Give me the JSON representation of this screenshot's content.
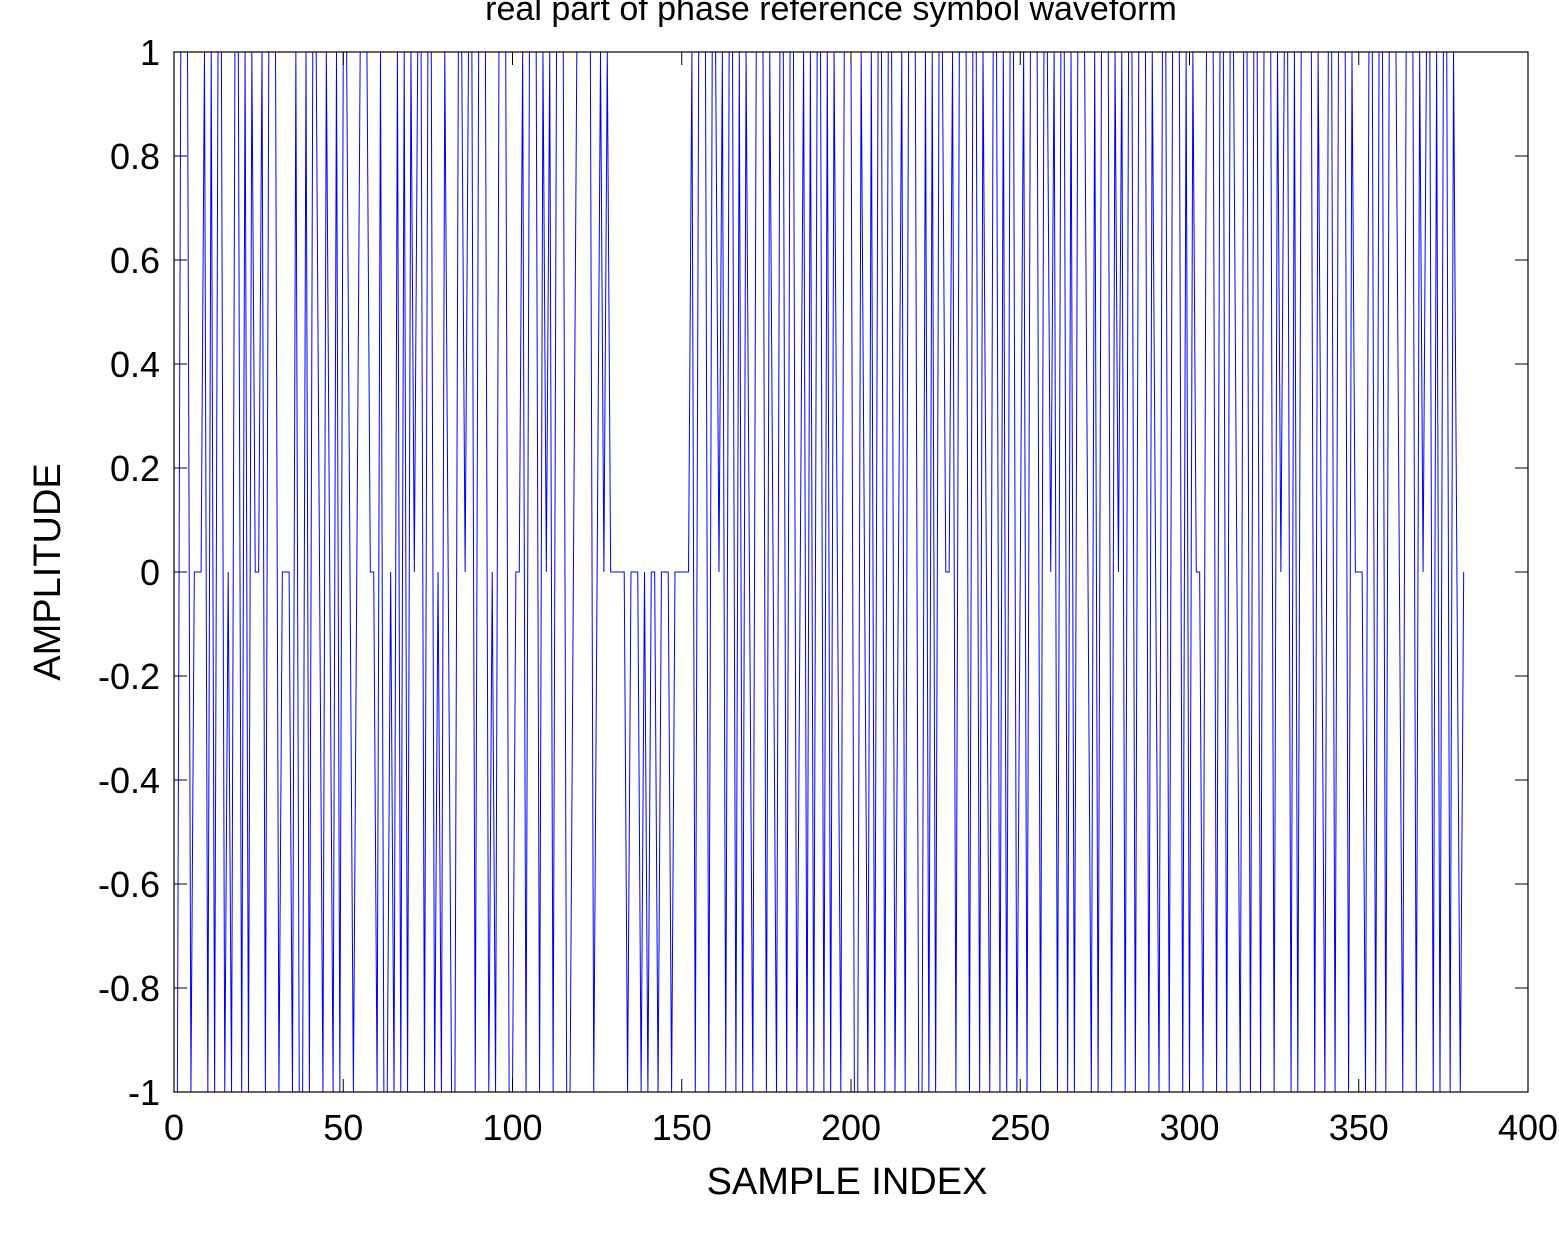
{
  "chart_data": {
    "type": "line",
    "title": "real part of phase reference symbol waveform",
    "xlabel": "SAMPLE INDEX",
    "ylabel": "AMPLITUDE",
    "xlim": [
      0,
      400
    ],
    "ylim": [
      -1,
      1
    ],
    "xticks": [
      "0",
      "50",
      "100",
      "150",
      "200",
      "250",
      "300",
      "350",
      "400"
    ],
    "yticks": [
      "-1",
      "-0.8",
      "-0.6",
      "-0.4",
      "-0.2",
      "0",
      "0.2",
      "0.4",
      "0.6",
      "0.8",
      "1"
    ],
    "grid": false,
    "line_color": "#0000ff",
    "series": [
      {
        "x_start": 1,
        "values": [
          -1,
          1,
          1,
          1,
          -1,
          0,
          0,
          0,
          1,
          -1,
          1,
          -1,
          1,
          1,
          -1,
          0,
          -1,
          1,
          1,
          -1,
          1,
          -1,
          1,
          0,
          0,
          1,
          -1,
          1,
          1,
          1,
          -1,
          0,
          0,
          0,
          -1,
          1,
          -1,
          -1,
          1,
          -1,
          1,
          1,
          0,
          -1,
          1,
          0,
          -1,
          1,
          -1,
          1,
          1,
          0,
          -1,
          0,
          1,
          1,
          1,
          0,
          0,
          -1,
          1,
          -1,
          -1,
          0,
          -1,
          1,
          -1,
          1,
          -1,
          1,
          0,
          1,
          1,
          -1,
          1,
          1,
          -1,
          0,
          -1,
          1,
          0,
          -1,
          -1,
          1,
          1,
          0,
          1,
          1,
          -1,
          1,
          1,
          1,
          -1,
          0,
          -1,
          1,
          1,
          1,
          -1,
          -1,
          0,
          0,
          1,
          -1,
          1,
          1,
          1,
          -1,
          1,
          0,
          1,
          -1,
          1,
          1,
          1,
          -1,
          -1,
          0,
          1,
          1,
          1,
          1,
          1,
          -1,
          0,
          1,
          0,
          1,
          0,
          0,
          0,
          0,
          0,
          -1,
          0,
          0,
          0,
          -1,
          0,
          -1,
          0,
          0,
          -1,
          0,
          0,
          0,
          -1,
          0,
          0,
          0,
          0,
          0,
          1,
          -1,
          1,
          1,
          1,
          -1,
          1,
          1,
          0,
          1,
          -1,
          1,
          1,
          -1,
          1,
          -1,
          1,
          0,
          -1,
          1,
          1,
          1,
          -1,
          1,
          0,
          -1,
          1,
          1,
          -1,
          1,
          1,
          -1,
          0,
          1,
          -1,
          1,
          -1,
          1,
          1,
          -1,
          1,
          -1,
          1,
          0,
          -1,
          1,
          1,
          1,
          -1,
          -1,
          1,
          0,
          -1,
          1,
          -1,
          1,
          1,
          -1,
          1,
          1,
          -1,
          0,
          1,
          -1,
          1,
          1,
          1,
          -1,
          -1,
          1,
          -1,
          1,
          -1,
          1,
          1,
          0,
          0,
          1,
          -1,
          1,
          1,
          1,
          -1,
          1,
          1,
          -1,
          1,
          0,
          -1,
          1,
          1,
          -1,
          1,
          -1,
          1,
          1,
          -1,
          0,
          1,
          -1,
          1,
          1,
          1,
          -1,
          1,
          1,
          0,
          1,
          -1,
          1,
          1,
          -1,
          1,
          -1,
          1,
          1,
          1,
          0,
          -1,
          1,
          -1,
          1,
          1,
          1,
          -1,
          1,
          0,
          1,
          -1,
          1,
          1,
          -1,
          1,
          1,
          1,
          -1,
          1,
          0,
          -1,
          1,
          1,
          -1,
          1,
          1,
          1,
          -1,
          1,
          -1,
          1,
          0,
          0,
          -1,
          1,
          1,
          1,
          -1,
          1,
          1,
          -1,
          1,
          1,
          0,
          -1,
          1,
          1,
          -1,
          1,
          1,
          -1,
          1,
          1,
          1,
          -1,
          1,
          0,
          1,
          1,
          -1,
          1,
          -1,
          1,
          1,
          1,
          1,
          -1,
          1,
          0,
          -1,
          1,
          1,
          -1,
          1,
          1,
          1,
          -1,
          1,
          0,
          0,
          0,
          -1,
          1,
          1,
          -1,
          1,
          1,
          -1,
          1,
          1,
          1,
          0,
          -1,
          1,
          1,
          1,
          -1,
          1,
          0,
          1,
          1,
          -1,
          1,
          -1,
          1,
          1,
          -1,
          1,
          0,
          -1,
          0
        ]
      }
    ]
  }
}
